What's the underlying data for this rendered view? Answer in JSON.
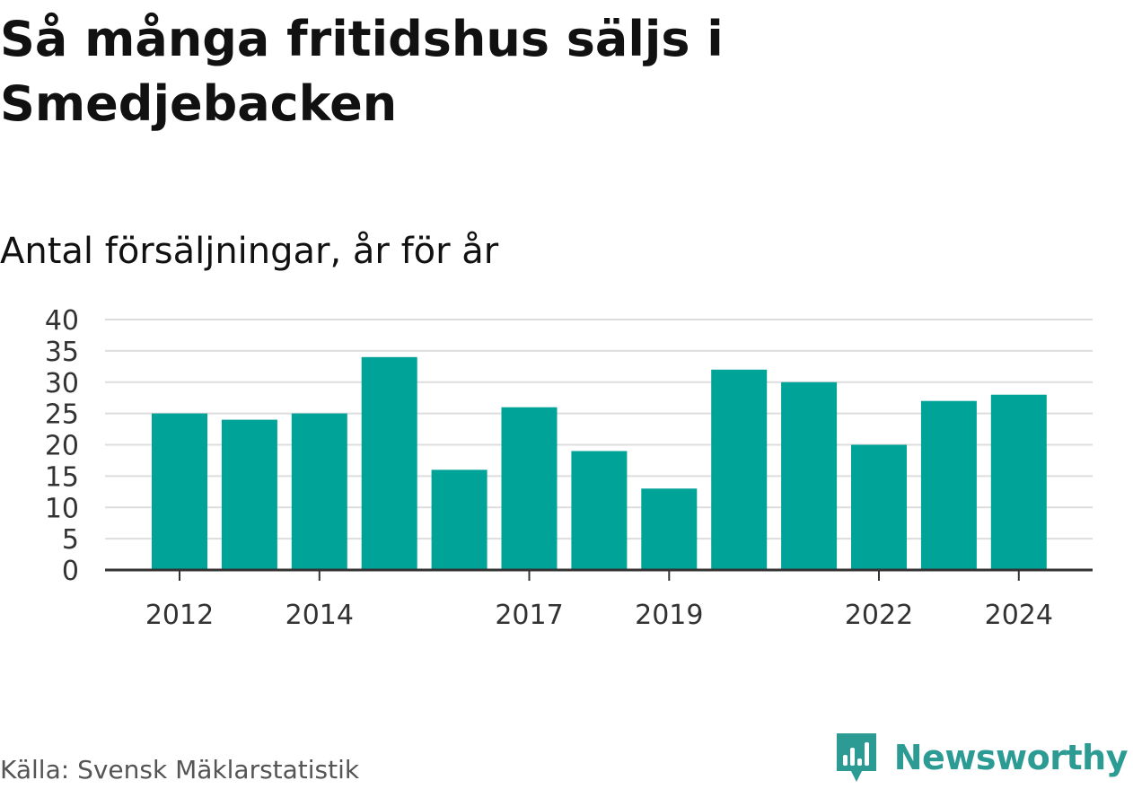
{
  "header": {
    "title": "Så många fritidshus säljs i Smedjebacken",
    "subtitle": "Antal försäljningar, år för år"
  },
  "footer": {
    "source": "Källa: Svensk Mäklarstatistik",
    "brand": "Newsworthy"
  },
  "colors": {
    "bar": "#00a398",
    "grid": "#dddddd",
    "axis": "#333333",
    "brand": "#2b9b93"
  },
  "chart_data": {
    "type": "bar",
    "categories": [
      "2012",
      "2013",
      "2014",
      "2015",
      "2016",
      "2017",
      "2018",
      "2019",
      "2020",
      "2021",
      "2022",
      "2023",
      "2024"
    ],
    "values": [
      25,
      24,
      25,
      34,
      16,
      26,
      19,
      13,
      32,
      30,
      20,
      27,
      28
    ],
    "x_tick_labels": [
      "2012",
      "2014",
      "2017",
      "2019",
      "2022",
      "2024"
    ],
    "y_ticks": [
      0,
      5,
      10,
      15,
      20,
      25,
      30,
      35,
      40
    ],
    "ylim": [
      0,
      40
    ],
    "grid": true,
    "legend": "none"
  }
}
